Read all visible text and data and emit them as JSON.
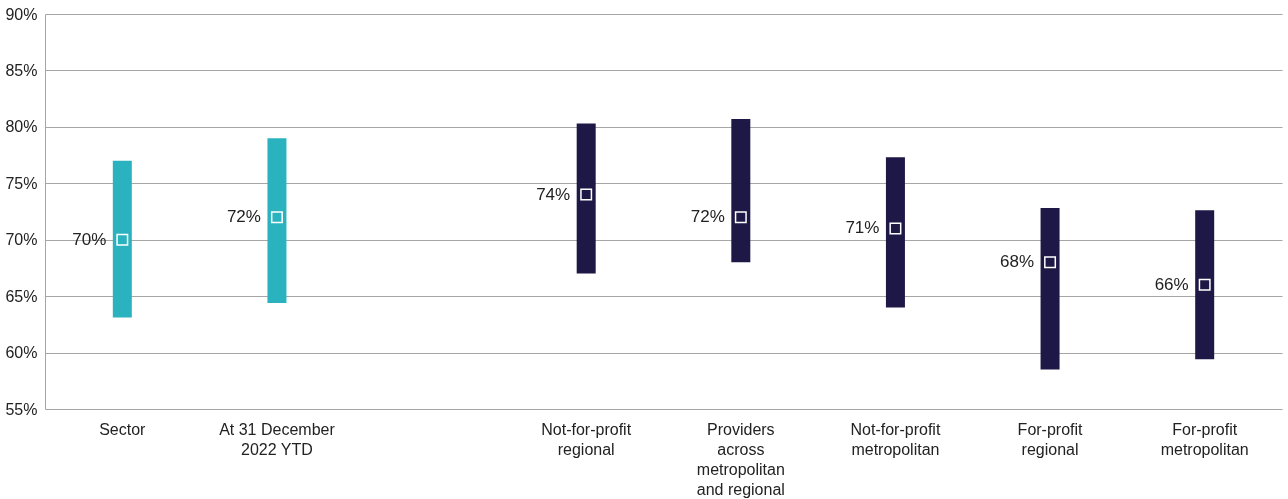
{
  "chart_data": {
    "type": "bar",
    "categories": [
      "Sector",
      "At 31 December 2022 YTD",
      null,
      "Not-for-profit regional",
      "Providers across metropolitan and regional",
      "Not-for-profit metropolitan",
      "For-profit regional",
      "For-profit metropolitan"
    ],
    "series": [
      {
        "type": "bar",
        "base": [
          63.1,
          64.4,
          null,
          67.0,
          68.0,
          64.0,
          58.5,
          59.4
        ],
        "values": [
          13.9,
          14.6,
          null,
          13.3,
          12.7,
          13.3,
          14.3,
          13.2
        ],
        "colors": [
          "#2ab3bf",
          "#2ab3bf",
          null,
          "#1e1846",
          "#1e1846",
          "#1e1846",
          "#1e1846",
          "#1e1846"
        ]
      },
      {
        "type": "scatter",
        "marker": "square",
        "values": [
          70,
          72,
          null,
          74,
          72,
          71,
          68,
          66
        ],
        "value_labels": [
          "70%",
          "72%",
          null,
          "74%",
          "72%",
          "71%",
          "68%",
          "66%"
        ],
        "colors": [
          "#2ab3bf",
          "#2ab3bf",
          null,
          "#1e1846",
          "#1e1846",
          "#1e1846",
          "#1e1846",
          "#1e1846"
        ]
      }
    ],
    "ylim": [
      55,
      90
    ],
    "yticks": [
      {
        "value": 55,
        "label": "55%"
      },
      {
        "value": 60,
        "label": "60%"
      },
      {
        "value": 65,
        "label": "65%"
      },
      {
        "value": 70,
        "label": "70%"
      },
      {
        "value": 75,
        "label": "75%"
      },
      {
        "value": 80,
        "label": "80%"
      },
      {
        "value": 85,
        "label": "85%"
      },
      {
        "value": 90,
        "label": "90%"
      }
    ],
    "grid": "y",
    "legend": false
  }
}
